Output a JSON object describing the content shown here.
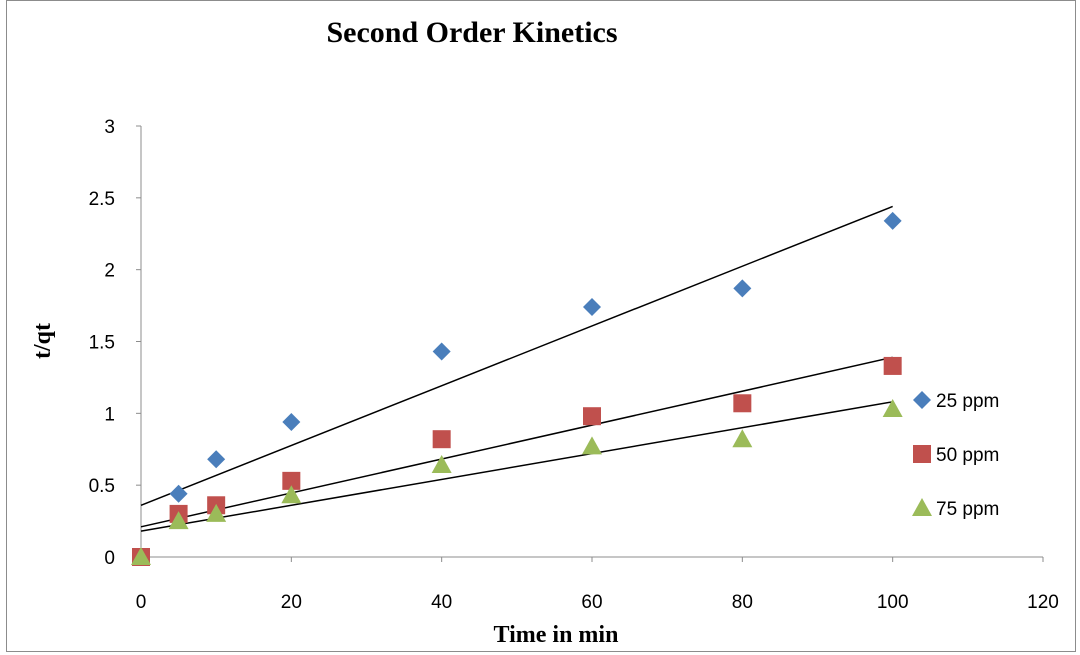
{
  "chart_data": {
    "type": "scatter",
    "title": "Second Order Kinetics",
    "xlabel": "Time in min",
    "ylabel": "t/qt",
    "xlim": [
      0,
      120
    ],
    "ylim": [
      0,
      3
    ],
    "xticks": [
      0,
      20,
      40,
      60,
      80,
      100,
      120
    ],
    "yticks": [
      0,
      0.5,
      1,
      1.5,
      2,
      2.5,
      3
    ],
    "grid": false,
    "legend_position": "right",
    "series": [
      {
        "name": "25 ppm",
        "marker": "diamond",
        "color": "#4a7ebb",
        "x": [
          0,
          5,
          10,
          20,
          40,
          60,
          80,
          100
        ],
        "y": [
          0,
          0.44,
          0.68,
          0.94,
          1.43,
          1.74,
          1.87,
          2.34
        ],
        "trendline": {
          "x0": 0,
          "y0": 0.36,
          "x1": 100,
          "y1": 2.44
        }
      },
      {
        "name": "50 ppm",
        "marker": "square",
        "color": "#c0504d",
        "x": [
          0,
          5,
          10,
          20,
          40,
          60,
          80,
          100
        ],
        "y": [
          0,
          0.3,
          0.36,
          0.53,
          0.82,
          0.98,
          1.07,
          1.33
        ],
        "trendline": {
          "x0": 0,
          "y0": 0.21,
          "x1": 100,
          "y1": 1.39
        }
      },
      {
        "name": "75 ppm",
        "marker": "triangle",
        "color": "#9bbb59",
        "x": [
          0,
          5,
          10,
          20,
          40,
          60,
          80,
          100
        ],
        "y": [
          0,
          0.25,
          0.3,
          0.43,
          0.64,
          0.77,
          0.82,
          1.03
        ],
        "trendline": {
          "x0": 0,
          "y0": 0.18,
          "x1": 100,
          "y1": 1.08
        }
      }
    ]
  }
}
